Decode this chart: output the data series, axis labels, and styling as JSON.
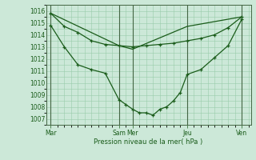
{
  "background_color": "#cce8d8",
  "grid_color": "#99ccaa",
  "line_color": "#1a5c1a",
  "xlabel": "Pression niveau de la mer( hPa )",
  "xtick_labels": [
    "Mar",
    "Sam",
    "Mer",
    "Jeu",
    "Ven"
  ],
  "xtick_positions": [
    0,
    60,
    72,
    120,
    168
  ],
  "xlim": [
    -4,
    176
  ],
  "ylim": [
    1006.5,
    1016.5
  ],
  "yticks": [
    1007,
    1008,
    1009,
    1010,
    1011,
    1012,
    1013,
    1014,
    1015,
    1016
  ],
  "vline_positions": [
    0,
    60,
    72,
    120,
    168
  ],
  "line_upper_x": [
    0,
    12,
    24,
    36,
    48,
    60,
    72,
    84,
    96,
    108,
    120,
    132,
    144,
    156,
    168
  ],
  "line_upper_y": [
    1015.8,
    1014.7,
    1014.2,
    1013.5,
    1013.2,
    1013.1,
    1013.0,
    1013.1,
    1013.2,
    1013.3,
    1013.5,
    1013.7,
    1014.0,
    1014.6,
    1015.5
  ],
  "line_curve_x": [
    0,
    12,
    24,
    36,
    48,
    60,
    66,
    72,
    78,
    84,
    90,
    96,
    102,
    108,
    114,
    120,
    132,
    144,
    156,
    168
  ],
  "line_curve_y": [
    1014.8,
    1013.0,
    1011.5,
    1011.1,
    1010.8,
    1008.6,
    1008.2,
    1007.8,
    1007.5,
    1007.5,
    1007.3,
    1007.8,
    1008.0,
    1008.5,
    1009.2,
    1010.7,
    1011.1,
    1012.1,
    1013.1,
    1015.3
  ],
  "line_diag_x": [
    0,
    60,
    72,
    120,
    168
  ],
  "line_diag_y": [
    1015.8,
    1013.1,
    1012.8,
    1014.7,
    1015.5
  ]
}
